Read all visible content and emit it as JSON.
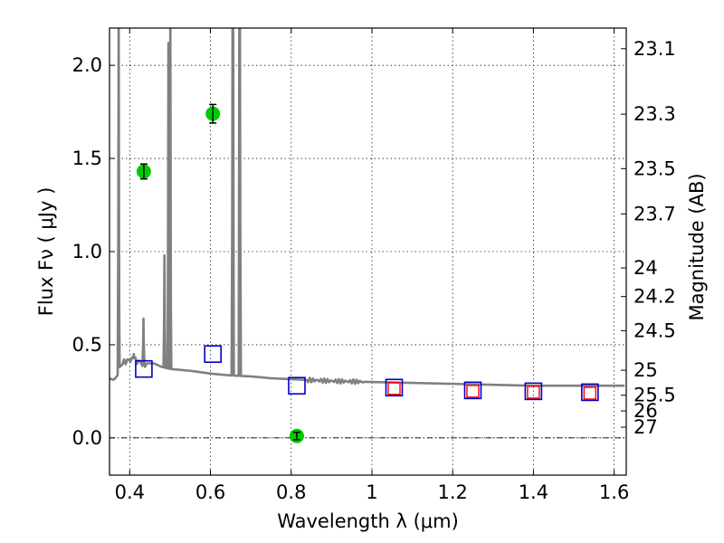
{
  "chart_data": {
    "type": "scatter",
    "title": "",
    "xlabel": "Wavelength  λ (μm)",
    "ylabel": "Flux  Fν  ( μJy )",
    "ylabel_right": "Magnitude (AB)",
    "xlim": [
      0.35,
      1.63
    ],
    "ylim": [
      -0.2,
      2.2
    ],
    "grid": true,
    "x_ticks": [
      0.4,
      0.6,
      0.8,
      1.0,
      1.2,
      1.4,
      1.6
    ],
    "x_tick_labels": [
      "0.4",
      "0.6",
      "0.8",
      "1",
      "1.2",
      "1.4",
      "1.6"
    ],
    "y_ticks": [
      0.0,
      0.5,
      1.0,
      1.5,
      2.0
    ],
    "y_tick_labels": [
      "0.0",
      "0.5",
      "1.0",
      "1.5",
      "2.0"
    ],
    "mag_ticks": [
      {
        "mag": 23.1,
        "label": "23.1"
      },
      {
        "mag": 23.3,
        "label": "23.3"
      },
      {
        "mag": 23.5,
        "label": "23.5"
      },
      {
        "mag": 23.7,
        "label": "23.7"
      },
      {
        "mag": 24.0,
        "label": "24"
      },
      {
        "mag": 24.2,
        "label": "24.2"
      },
      {
        "mag": 24.5,
        "label": "24.5"
      },
      {
        "mag": 25.0,
        "label": "25"
      },
      {
        "mag": 25.5,
        "label": "25.5"
      },
      {
        "mag": 26.0,
        "label": "26"
      },
      {
        "mag": 27.0,
        "label": "27"
      }
    ],
    "series": [
      {
        "kind": "model_spectrum",
        "color": "#808080",
        "continuum": [
          [
            0.35,
            0.32
          ],
          [
            0.36,
            0.31
          ],
          [
            0.37,
            0.335
          ],
          [
            0.375,
            0.38
          ],
          [
            0.39,
            0.41
          ],
          [
            0.4,
            0.42
          ],
          [
            0.42,
            0.41
          ],
          [
            0.44,
            0.4
          ],
          [
            0.46,
            0.4
          ],
          [
            0.48,
            0.38
          ],
          [
            0.5,
            0.37
          ],
          [
            0.55,
            0.36
          ],
          [
            0.6,
            0.345
          ],
          [
            0.65,
            0.335
          ],
          [
            0.7,
            0.33
          ],
          [
            0.75,
            0.32
          ],
          [
            0.8,
            0.315
          ],
          [
            0.85,
            0.31
          ],
          [
            0.9,
            0.305
          ],
          [
            1.0,
            0.3
          ],
          [
            1.1,
            0.295
          ],
          [
            1.2,
            0.29
          ],
          [
            1.3,
            0.285
          ],
          [
            1.4,
            0.28
          ],
          [
            1.5,
            0.28
          ],
          [
            1.63,
            0.28
          ]
        ],
        "lines": [
          {
            "x": 0.3727,
            "peak": 2.3
          },
          {
            "x": 0.4102,
            "peak": 0.45
          },
          {
            "x": 0.4341,
            "peak": 0.64
          },
          {
            "x": 0.4861,
            "peak": 0.98
          },
          {
            "x": 0.4959,
            "peak": 2.12
          },
          {
            "x": 0.5007,
            "peak": 2.3
          },
          {
            "x": 0.6548,
            "peak": 2.3
          },
          {
            "x": 0.6563,
            "peak": 2.3
          },
          {
            "x": 0.6716,
            "peak": 2.3
          },
          {
            "x": 0.6731,
            "peak": 2.3
          }
        ]
      },
      {
        "kind": "observed",
        "color": "#00cc00",
        "points": [
          {
            "x": 0.435,
            "y": 1.43,
            "err": 0.04
          },
          {
            "x": 0.606,
            "y": 1.74,
            "err": 0.05
          },
          {
            "x": 0.814,
            "y": 0.01,
            "err": 0.02
          }
        ]
      },
      {
        "kind": "model_photometry",
        "color": "#0000cc",
        "points": [
          {
            "x": 0.435,
            "y": 0.37
          },
          {
            "x": 0.606,
            "y": 0.45
          },
          {
            "x": 0.814,
            "y": 0.28
          },
          {
            "x": 1.055,
            "y": 0.27
          },
          {
            "x": 1.25,
            "y": 0.255
          },
          {
            "x": 1.4,
            "y": 0.25
          },
          {
            "x": 1.54,
            "y": 0.245
          }
        ]
      },
      {
        "kind": "model_photometry_alt",
        "color": "#ff0000",
        "points": [
          {
            "x": 1.055,
            "y": 0.265
          },
          {
            "x": 1.25,
            "y": 0.25
          },
          {
            "x": 1.4,
            "y": 0.245
          },
          {
            "x": 1.54,
            "y": 0.24
          }
        ]
      }
    ]
  }
}
